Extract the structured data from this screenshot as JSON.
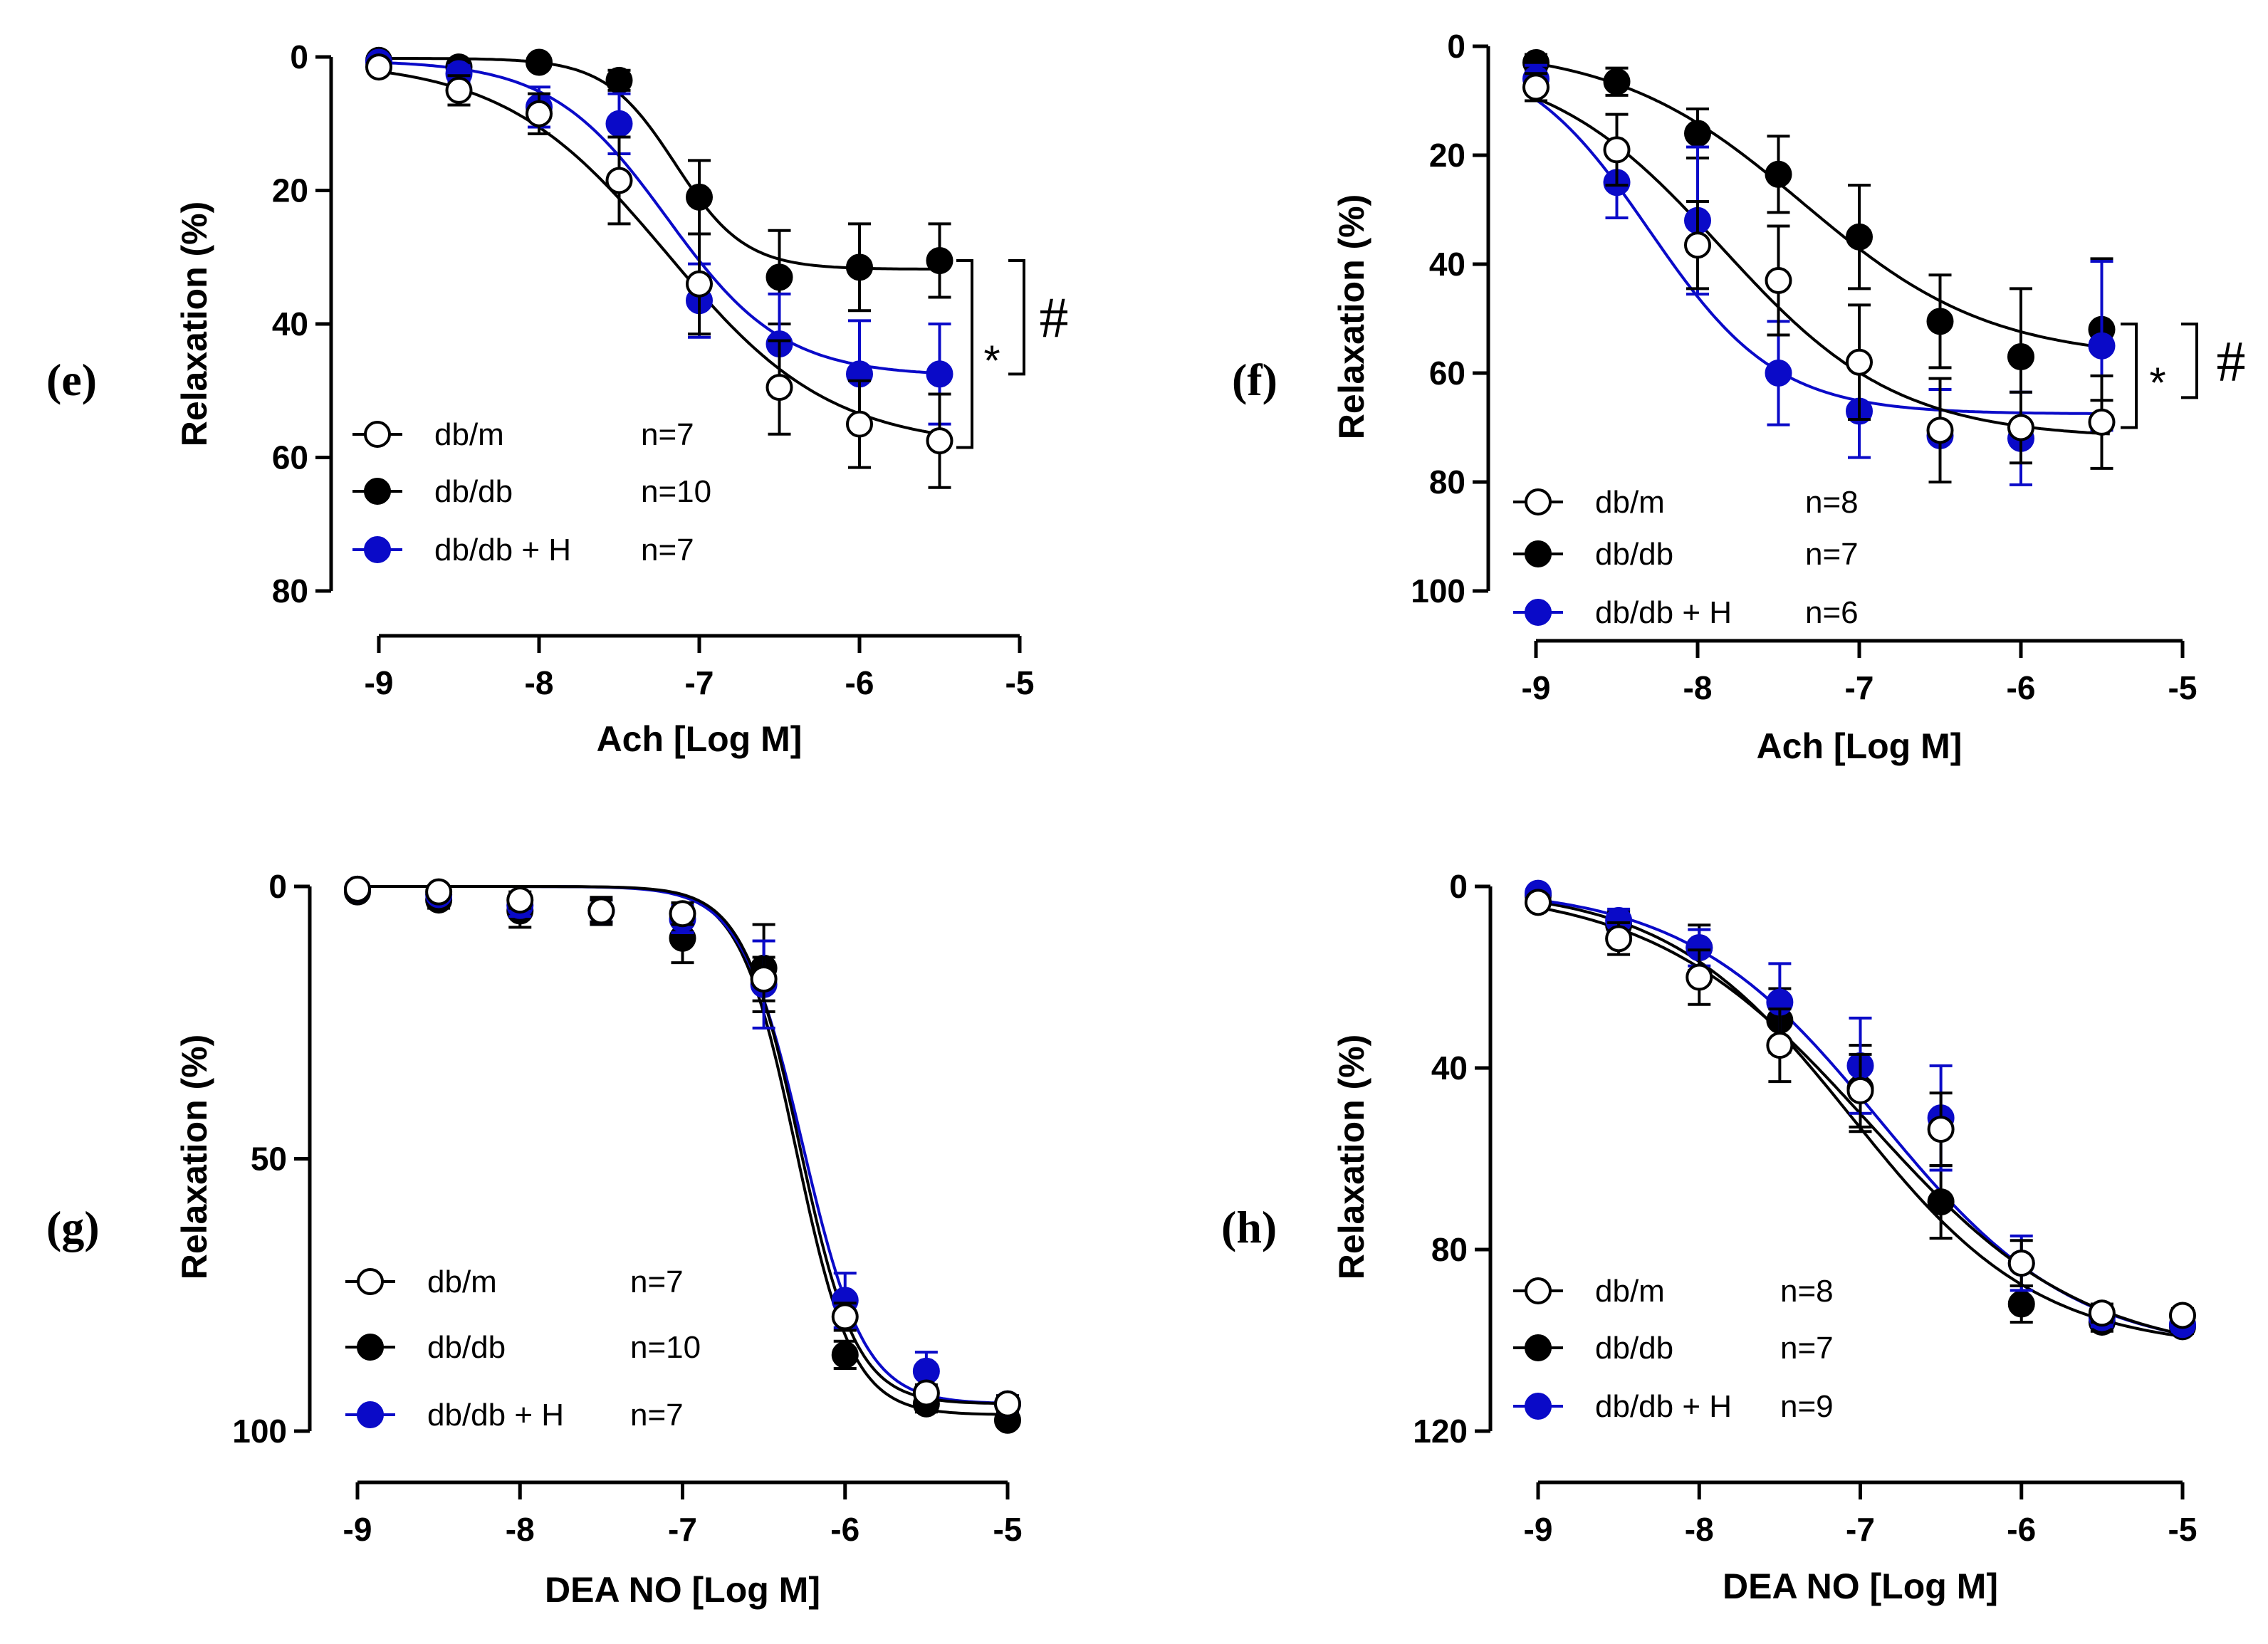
{
  "colors": {
    "db_m": "#000000",
    "db_db": "#000000",
    "db_db_h": "#0a0ac8",
    "open_fill": "#ffffff"
  },
  "chart_data": [
    {
      "id": "e",
      "type": "line",
      "panel_label": "(e)",
      "xlabel": "Ach [Log M]",
      "ylabel": "Relaxation (%)",
      "x_ticks": [
        "-9",
        "-8",
        "-7",
        "-6",
        "-5"
      ],
      "y_ticks": [
        "0",
        "20",
        "40",
        "60",
        "80"
      ],
      "xlim": [
        -9,
        -5
      ],
      "ylim": [
        0,
        80
      ],
      "y_inverted": true,
      "x": [
        -9,
        -8.5,
        -8,
        -7.5,
        -7,
        -6.5,
        -6,
        -5.5
      ],
      "series": [
        {
          "name": "db/m",
          "n": "n=7",
          "marker": "open",
          "color": "#000000",
          "values": [
            1.5,
            5,
            8.5,
            18.5,
            34,
            49.5,
            55,
            57.5
          ],
          "errors": [
            0.8,
            2.2,
            3,
            6.5,
            7.5,
            7,
            6.5,
            7
          ],
          "fit": {
            "bottom": 0.5,
            "top": 58.5,
            "log_ec50": -7.2,
            "hill": 0.85
          }
        },
        {
          "name": "db/db",
          "n": "n=10",
          "marker": "filled",
          "color": "#000000",
          "values": [
            0.5,
            1.5,
            0.8,
            3.5,
            21,
            33,
            31.5,
            30.5
          ],
          "errors": [
            0.5,
            1,
            0.8,
            1.5,
            5.5,
            7,
            6.5,
            5.5
          ],
          "fit": {
            "bottom": 0.2,
            "top": 31.8,
            "log_ec50": -7.15,
            "hill": 2
          }
        },
        {
          "name": "db/db + H",
          "n": "n=7",
          "marker": "filled",
          "color": "#0a0ac8",
          "values": [
            0.8,
            2.5,
            7.5,
            10,
            36.5,
            43,
            47.5,
            47.5
          ],
          "errors": [
            0.5,
            1.2,
            3,
            4.5,
            5.5,
            7.5,
            8,
            7.5
          ],
          "fit": {
            "bottom": 0.5,
            "top": 47.8,
            "log_ec50": -7.2,
            "hill": 1.2
          }
        }
      ],
      "annotations": [
        {
          "label": "*",
          "from": 30.5,
          "to": 58.5
        },
        {
          "label": "#",
          "from": 30.5,
          "to": 47.5
        }
      ]
    },
    {
      "id": "f",
      "type": "line",
      "panel_label": "(f)",
      "xlabel": "Ach [Log M]",
      "ylabel": "Relaxation (%)",
      "x_ticks": [
        "-9",
        "-8",
        "-7",
        "-6",
        "-5"
      ],
      "y_ticks": [
        "0",
        "20",
        "40",
        "60",
        "80",
        "100"
      ],
      "xlim": [
        -9,
        -5
      ],
      "ylim": [
        0,
        100
      ],
      "y_inverted": true,
      "x": [
        -9,
        -8.5,
        -8,
        -7.5,
        -7,
        -6.5,
        -6,
        -5.5
      ],
      "series": [
        {
          "name": "db/m",
          "n": "n=8",
          "marker": "open",
          "color": "#000000",
          "values": [
            7.5,
            19,
            36.5,
            43,
            58,
            70.5,
            70,
            69
          ],
          "errors": [
            2.5,
            6.5,
            8,
            10,
            10.5,
            9.5,
            6.5,
            8.5
          ],
          "fit": {
            "bottom": 2,
            "top": 72,
            "log_ec50": -7.85,
            "hill": 0.8
          }
        },
        {
          "name": "db/db",
          "n": "n=7",
          "marker": "filled",
          "color": "#000000",
          "values": [
            3,
            6.5,
            16,
            23.5,
            35,
            50.5,
            57,
            52
          ],
          "errors": [
            1.5,
            2.5,
            4.5,
            7,
            9.5,
            8.5,
            12.5,
            13
          ],
          "fit": {
            "bottom": 0,
            "top": 57.5,
            "log_ec50": -7.35,
            "hill": 0.75
          }
        },
        {
          "name": "db/db + H",
          "n": "n=6",
          "marker": "filled",
          "color": "#0a0ac8",
          "values": [
            6,
            25,
            32,
            60,
            67,
            71.5,
            72,
            55
          ],
          "errors": [
            2.5,
            6.5,
            13.5,
            9.5,
            8.5,
            8.5,
            8.5,
            15.5
          ],
          "fit": {
            "bottom": 0,
            "top": 67.5,
            "log_ec50": -8.3,
            "hill": 1.1
          }
        }
      ],
      "annotations": [
        {
          "label": "*",
          "from": 51,
          "to": 70
        },
        {
          "label": "#",
          "from": 51,
          "to": 64.5
        }
      ]
    },
    {
      "id": "g",
      "type": "line",
      "panel_label": "(g)",
      "xlabel": "DEA  NO [Log M]",
      "ylabel": "Relaxation (%)",
      "x_ticks": [
        "-9",
        "-8",
        "-7",
        "-6",
        "-5"
      ],
      "y_ticks": [
        "0",
        "50",
        "100"
      ],
      "xlim": [
        -9,
        -5
      ],
      "ylim": [
        0,
        100
      ],
      "y_inverted": true,
      "x": [
        -9,
        -8.5,
        -8,
        -7.5,
        -7,
        -6.5,
        -6,
        -5.5,
        -5
      ],
      "series": [
        {
          "name": "db/m",
          "n": "n=7",
          "marker": "open",
          "color": "#000000",
          "values": [
            0.5,
            1,
            2.5,
            4.5,
            5,
            17,
            79,
            93,
            95
          ],
          "errors": [
            0.5,
            0.8,
            1.5,
            2,
            2,
            4,
            2.5,
            1.5,
            1.5
          ],
          "fit": {
            "bottom": 0,
            "top": 95,
            "log_ec50": -6.28,
            "hill": 2.5
          }
        },
        {
          "name": "db/db",
          "n": "n=10",
          "marker": "filled",
          "color": "#000000",
          "values": [
            1,
            2.5,
            4.5,
            4.5,
            9.5,
            15,
            86,
            95,
            98
          ],
          "errors": [
            0.5,
            1.5,
            3,
            2.5,
            4.5,
            8,
            2.5,
            1.5,
            1
          ],
          "fit": {
            "bottom": 0,
            "top": 97,
            "log_ec50": -6.3,
            "hill": 2.5
          }
        },
        {
          "name": "db/db + H",
          "n": "n=7",
          "marker": "filled",
          "color": "#0a0ac8",
          "values": [
            0.5,
            1.5,
            3.5,
            4.5,
            6,
            18,
            76,
            89,
            95
          ],
          "errors": [
            0.5,
            1,
            2,
            2,
            2.5,
            8,
            5,
            3.5,
            1.5
          ],
          "fit": {
            "bottom": 0,
            "top": 95,
            "log_ec50": -6.26,
            "hill": 2.3
          }
        }
      ]
    },
    {
      "id": "h",
      "type": "line",
      "panel_label": "(h)",
      "xlabel": "DEA  NO [Log M]",
      "ylabel": "Relaxation (%)",
      "x_ticks": [
        "-9",
        "-8",
        "-7",
        "-6",
        "-5"
      ],
      "y_ticks": [
        "0",
        "40",
        "80",
        "120"
      ],
      "xlim": [
        -9,
        -5
      ],
      "ylim": [
        0,
        120
      ],
      "y_inverted": true,
      "x": [
        -9,
        -8.5,
        -8,
        -7.5,
        -7,
        -6.5,
        -6,
        -5.5,
        -5
      ],
      "series": [
        {
          "name": "db/m",
          "n": "n=8",
          "marker": "open",
          "color": "#000000",
          "values": [
            3.5,
            11.5,
            20,
            35,
            45,
            53.5,
            83,
            94,
            94.5
          ],
          "errors": [
            1.5,
            3.5,
            6,
            8,
            8,
            8,
            5,
            2,
            1.5
          ],
          "fit": {
            "bottom": 0,
            "top": 104,
            "log_ec50": -6.95,
            "hill": 0.65
          }
        },
        {
          "name": "db/db",
          "n": "n=7",
          "marker": "filled",
          "color": "#000000",
          "values": [
            2,
            8.5,
            13.5,
            29.5,
            44.5,
            69.5,
            92,
            96,
            97
          ],
          "errors": [
            1.5,
            3,
            5,
            7,
            9.5,
            8,
            4,
            2,
            1.5
          ],
          "fit": {
            "bottom": 0,
            "top": 102,
            "log_ec50": -7.05,
            "hill": 0.75
          }
        },
        {
          "name": "db/db + H",
          "n": "n=9",
          "marker": "filled",
          "color": "#0a0ac8",
          "values": [
            1.5,
            7.5,
            13.5,
            25.5,
            39.5,
            51,
            83,
            95,
            96.5
          ],
          "errors": [
            1,
            2.5,
            4,
            8.5,
            10.5,
            11.5,
            6,
            2,
            1.5
          ],
          "fit": {
            "bottom": 0,
            "top": 103,
            "log_ec50": -6.88,
            "hill": 0.72
          }
        }
      ]
    }
  ]
}
